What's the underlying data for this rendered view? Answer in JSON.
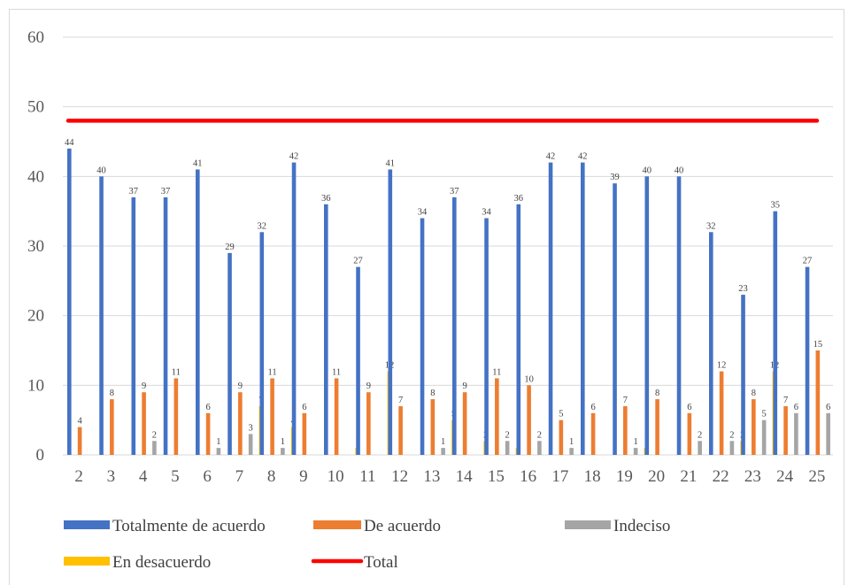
{
  "chart_data": {
    "type": "bar",
    "title": "",
    "xlabel": "",
    "ylabel": "",
    "ylim": [
      0,
      60
    ],
    "yticks": [
      0,
      10,
      20,
      30,
      40,
      50,
      60
    ],
    "grid": true,
    "legend_position": "bottom",
    "categories": [
      "2",
      "3",
      "4",
      "5",
      "6",
      "7",
      "8",
      "9",
      "10",
      "11",
      "12",
      "13",
      "14",
      "15",
      "16",
      "17",
      "18",
      "19",
      "20",
      "21",
      "22",
      "23",
      "24",
      "25"
    ],
    "series": [
      {
        "name": "Totalmente de acuerdo",
        "color": "#4472c4",
        "values": [
          44,
          40,
          37,
          37,
          41,
          29,
          32,
          42,
          36,
          27,
          41,
          34,
          37,
          34,
          36,
          42,
          42,
          39,
          40,
          40,
          32,
          23,
          35,
          27
        ]
      },
      {
        "name": "De acuerdo",
        "color": "#ed7d31",
        "values": [
          4,
          8,
          9,
          11,
          6,
          9,
          11,
          6,
          11,
          9,
          7,
          8,
          9,
          11,
          10,
          5,
          6,
          7,
          8,
          6,
          12,
          8,
          7,
          15
        ]
      },
      {
        "name": "Indeciso",
        "color": "#a5a5a5",
        "values": [
          0,
          0,
          2,
          0,
          1,
          3,
          1,
          0,
          0,
          0,
          0,
          1,
          0,
          2,
          2,
          1,
          0,
          1,
          0,
          2,
          2,
          5,
          6,
          6
        ]
      },
      {
        "name": "En desacuerdo",
        "color": "#ffc000",
        "values": [
          0,
          0,
          0,
          0,
          0,
          7,
          4,
          0,
          1,
          12,
          0,
          5,
          2,
          1,
          0,
          0,
          0,
          1,
          0,
          0,
          2,
          12,
          0,
          0
        ]
      }
    ],
    "line_series": {
      "name": "Total",
      "color": "#ff0000",
      "value": 48
    }
  }
}
